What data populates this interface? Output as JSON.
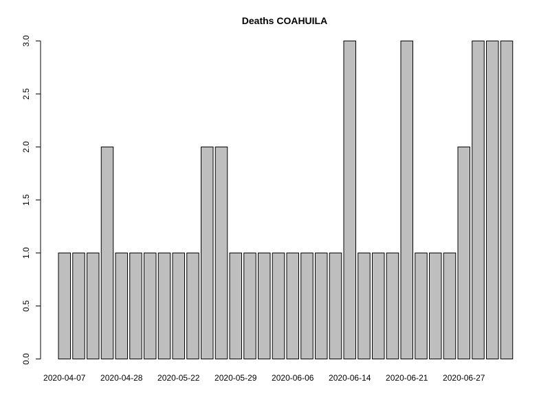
{
  "chart_data": {
    "type": "bar",
    "title": "Deaths COAHUILA",
    "xlabel": "",
    "ylabel": "",
    "ylim": [
      0,
      3
    ],
    "y_ticks": [
      "0.0",
      "0.5",
      "1.0",
      "1.5",
      "2.0",
      "2.5",
      "3.0"
    ],
    "x_tick_labels": [
      "2020-04-07",
      "2020-04-28",
      "2020-05-22",
      "2020-05-29",
      "2020-06-06",
      "2020-06-14",
      "2020-06-21",
      "2020-06-27"
    ],
    "values": [
      1,
      1,
      1,
      2,
      1,
      1,
      1,
      1,
      1,
      1,
      2,
      2,
      1,
      1,
      1,
      1,
      1,
      1,
      1,
      1,
      3,
      1,
      1,
      1,
      3,
      1,
      1,
      1,
      2,
      3,
      3,
      3
    ],
    "bar_color": "#bebebe",
    "grid": false,
    "legend": "none"
  }
}
